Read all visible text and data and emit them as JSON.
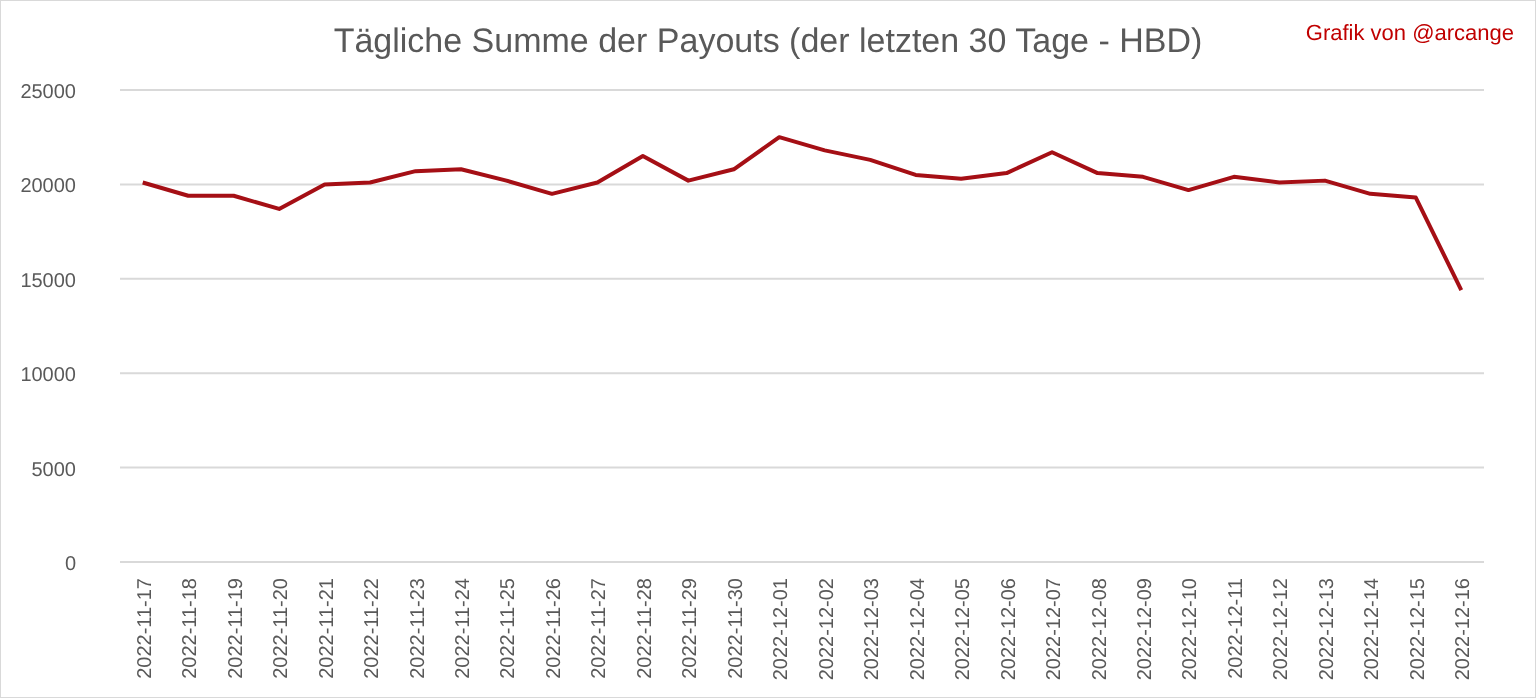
{
  "chart_data": {
    "type": "line",
    "title": "Tägliche Summe der Payouts (der letzten 30 Tage - HBD)",
    "annotations": [
      "Grafik von @arcange"
    ],
    "categories": [
      "2022-11-17",
      "2022-11-18",
      "2022-11-19",
      "2022-11-20",
      "2022-11-21",
      "2022-11-22",
      "2022-11-23",
      "2022-11-24",
      "2022-11-25",
      "2022-11-26",
      "2022-11-27",
      "2022-11-28",
      "2022-11-29",
      "2022-11-30",
      "2022-12-01",
      "2022-12-02",
      "2022-12-03",
      "2022-12-04",
      "2022-12-05",
      "2022-12-06",
      "2022-12-07",
      "2022-12-08",
      "2022-12-09",
      "2022-12-10",
      "2022-12-11",
      "2022-12-12",
      "2022-12-13",
      "2022-12-14",
      "2022-12-15",
      "2022-12-16"
    ],
    "series": [
      {
        "color": "#a50f15",
        "values": [
          20100,
          19400,
          19400,
          18700,
          20000,
          20100,
          20700,
          20800,
          20200,
          19500,
          20100,
          21500,
          20200,
          20800,
          22500,
          21800,
          21300,
          20500,
          20300,
          20600,
          21700,
          20600,
          20400,
          19700,
          20400,
          20100,
          20200,
          19500,
          19300,
          14400
        ]
      }
    ],
    "ylim": [
      0,
      25000
    ],
    "yticks": [
      0,
      5000,
      10000,
      15000,
      20000,
      25000
    ],
    "grid": "y"
  }
}
